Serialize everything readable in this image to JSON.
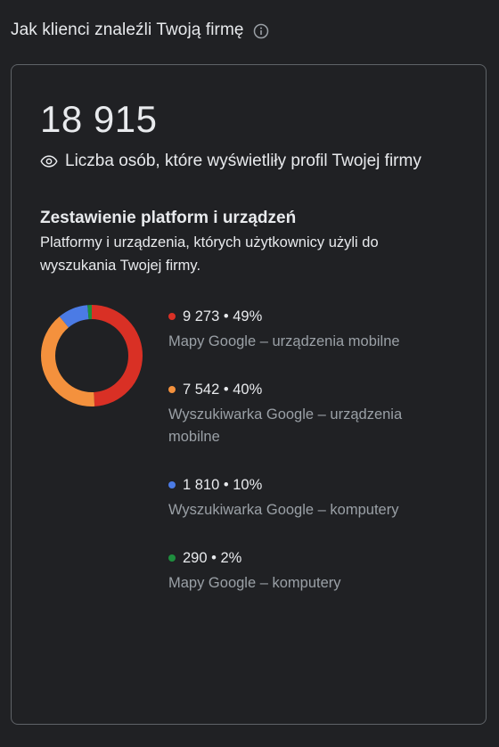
{
  "header": {
    "title": "Jak klienci znaleźli Twoją firmę",
    "info_icon": "info-outline-icon"
  },
  "summary": {
    "total": "18 915",
    "icon": "eye-icon",
    "label": "Liczba osób, które wyświetliły profil Twojej firmy"
  },
  "breakdown": {
    "title": "Zestawienie platform i urządzeń",
    "description": "Platformy i urządzenia, których użytkownicy użyli do wyszukania Twojej firmy."
  },
  "chart_data": {
    "type": "pie",
    "variant": "donut",
    "categories": [
      "Mapy Google – urządzenia mobilne",
      "Wyszukiwarka Google – urządzenia mobilne",
      "Wyszukiwarka Google – komputery",
      "Mapy Google – komputery"
    ],
    "values": [
      9273,
      7542,
      1810,
      290
    ],
    "percentages": [
      49,
      40,
      10,
      2
    ],
    "colors": [
      "#d93025",
      "#f4913d",
      "#4b7be5",
      "#1e8e3e"
    ],
    "legend_placement": "right"
  },
  "legend": {
    "items": [
      {
        "value_text": "9 273 • 49%",
        "label": "Mapy Google – urządzenia mobilne",
        "color": "#d93025"
      },
      {
        "value_text": "7 542 • 40%",
        "label": "Wyszukiwarka Google – urządzenia mobilne",
        "color": "#f4913d"
      },
      {
        "value_text": "1 810 • 10%",
        "label": "Wyszukiwarka Google – komputery",
        "color": "#4b7be5"
      },
      {
        "value_text": "290 • 2%",
        "label": "Mapy Google – komputery",
        "color": "#1e8e3e"
      }
    ]
  },
  "colors": {
    "background": "#202124",
    "border": "#5f6368",
    "text_primary": "#e8eaed",
    "text_secondary": "#9aa0a6"
  }
}
